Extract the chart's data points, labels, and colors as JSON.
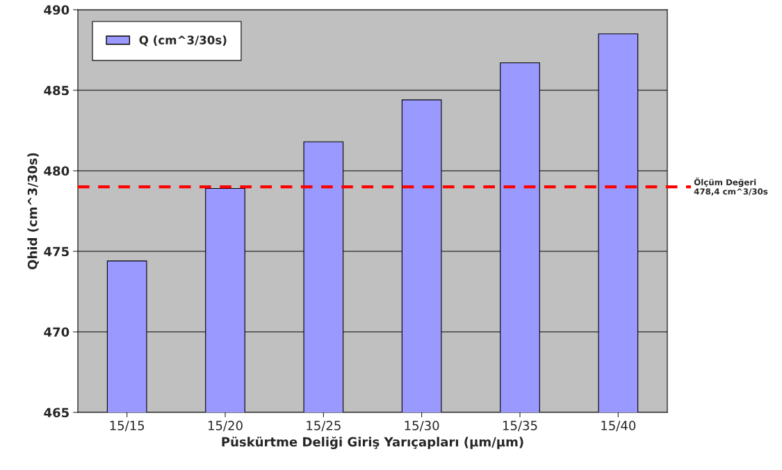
{
  "chart_data": {
    "type": "bar",
    "xlabel": "Püskürtme Deliği Giriş Yarıçapları (µm/µm)",
    "ylabel": "Qhid (cm^3/30s)",
    "categories": [
      "15/15",
      "15/20",
      "15/25",
      "15/30",
      "15/35",
      "15/40"
    ],
    "series": [
      {
        "name": "Q (cm^3/30s)",
        "color": "#9999ff",
        "values": [
          474.4,
          478.9,
          481.8,
          484.4,
          486.7,
          488.5
        ]
      }
    ],
    "ylim": [
      465,
      490
    ],
    "yticks": [
      465,
      470,
      475,
      480,
      485,
      490
    ],
    "grid": "y",
    "legend": "top left",
    "ref_lines": [
      {
        "axis": "y",
        "value": 479.0,
        "label": "Ölçüm Değeri\n478,4 cm^3/30s",
        "color": "#ff0000",
        "line_style": "dashed"
      }
    ]
  }
}
